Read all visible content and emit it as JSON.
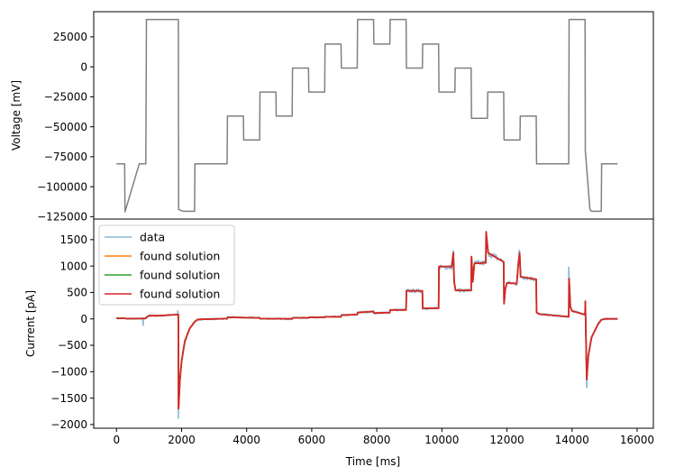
{
  "chart_data": [
    {
      "type": "line",
      "ylabel": "Voltage [mV]",
      "xlabel": "",
      "xlim": [
        -700,
        16500
      ],
      "ylim": [
        -127000,
        46000
      ],
      "yticks": [
        25000,
        0,
        -25000,
        -50000,
        -75000,
        -100000,
        -125000
      ],
      "ytick_labels": [
        "25000",
        "0",
        "−25000",
        "−50000",
        "−75000",
        "−100000",
        "−125000"
      ],
      "series": [
        {
          "color": "#808080",
          "points": [
            [
              0,
              -81000
            ],
            [
              250,
              -81000
            ],
            [
              260,
              -121000
            ],
            [
              700,
              -81000
            ],
            [
              900,
              -81000
            ],
            [
              920,
              39500
            ],
            [
              1900,
              39500
            ],
            [
              1910,
              -119000
            ],
            [
              2050,
              -120500
            ],
            [
              2400,
              -120500
            ],
            [
              2410,
              -81000
            ],
            [
              3400,
              -81000
            ],
            [
              3410,
              -41000
            ],
            [
              3900,
              -41000
            ],
            [
              3910,
              -61000
            ],
            [
              4400,
              -61000
            ],
            [
              4410,
              -21000
            ],
            [
              4900,
              -21000
            ],
            [
              4910,
              -41000
            ],
            [
              5400,
              -41000
            ],
            [
              5410,
              -1000
            ],
            [
              5900,
              -1000
            ],
            [
              5910,
              -21000
            ],
            [
              6400,
              -21000
            ],
            [
              6410,
              19000
            ],
            [
              6900,
              19000
            ],
            [
              6910,
              -1000
            ],
            [
              7400,
              -1000
            ],
            [
              7410,
              39500
            ],
            [
              7900,
              39500
            ],
            [
              7910,
              19000
            ],
            [
              8400,
              19000
            ],
            [
              8410,
              39500
            ],
            [
              8900,
              39500
            ],
            [
              8910,
              -1000
            ],
            [
              9400,
              -1000
            ],
            [
              9410,
              19000
            ],
            [
              9900,
              19000
            ],
            [
              9910,
              -21000
            ],
            [
              10400,
              -21000
            ],
            [
              10410,
              -1000
            ],
            [
              10900,
              -1000
            ],
            [
              10910,
              -43000
            ],
            [
              11400,
              -43000
            ],
            [
              11410,
              -21000
            ],
            [
              11900,
              -21000
            ],
            [
              11910,
              -61000
            ],
            [
              12400,
              -61000
            ],
            [
              12410,
              -41000
            ],
            [
              12900,
              -41000
            ],
            [
              12910,
              -81000
            ],
            [
              13900,
              -81000
            ],
            [
              13910,
              39500
            ],
            [
              14400,
              39500
            ],
            [
              14410,
              -70000
            ],
            [
              14550,
              -119000
            ],
            [
              14600,
              -120500
            ],
            [
              14900,
              -120500
            ],
            [
              14910,
              -81000
            ],
            [
              15400,
              -81000
            ]
          ]
        }
      ]
    },
    {
      "type": "line",
      "ylabel": "Current [pA]",
      "xlabel": "Time [ms]",
      "xlim": [
        -700,
        16500
      ],
      "ylim": [
        -2070,
        1890
      ],
      "xticks": [
        0,
        2000,
        4000,
        6000,
        8000,
        10000,
        12000,
        14000,
        16000
      ],
      "xtick_labels": [
        "0",
        "2000",
        "4000",
        "6000",
        "8000",
        "10000",
        "12000",
        "14000",
        "16000"
      ],
      "yticks": [
        1500,
        1000,
        500,
        0,
        -500,
        -1000,
        -1500,
        -2000
      ],
      "ytick_labels": [
        "1500",
        "1000",
        "500",
        "0",
        "−500",
        "−1000",
        "−1500",
        "−2000"
      ],
      "legend": "upper-left",
      "series": [
        {
          "name": "data",
          "color": "#8ab9d6",
          "width": 1.6,
          "role": "data"
        },
        {
          "name": "found solution",
          "color": "#ff7f0e",
          "width": 1.6,
          "role": "fit"
        },
        {
          "name": "found solution",
          "color": "#2ca02c",
          "width": 1.6,
          "role": "fit"
        },
        {
          "name": "found solution",
          "color": "#d62728",
          "width": 1.8,
          "role": "fit"
        }
      ],
      "fit_points": [
        [
          0,
          10
        ],
        [
          250,
          10
        ],
        [
          300,
          5
        ],
        [
          700,
          5
        ],
        [
          900,
          10
        ],
        [
          920,
          30
        ],
        [
          1000,
          60
        ],
        [
          1300,
          60
        ],
        [
          1850,
          80
        ],
        [
          1900,
          80
        ],
        [
          1905,
          -1700
        ],
        [
          1950,
          -1150
        ],
        [
          2000,
          -800
        ],
        [
          2100,
          -420
        ],
        [
          2250,
          -180
        ],
        [
          2400,
          -60
        ],
        [
          2500,
          -10
        ],
        [
          3400,
          5
        ],
        [
          3410,
          30
        ],
        [
          4400,
          20
        ],
        [
          4410,
          5
        ],
        [
          5400,
          0
        ],
        [
          5410,
          20
        ],
        [
          5900,
          20
        ],
        [
          5910,
          30
        ],
        [
          6400,
          30
        ],
        [
          6410,
          40
        ],
        [
          6900,
          40
        ],
        [
          6910,
          70
        ],
        [
          7400,
          80
        ],
        [
          7410,
          120
        ],
        [
          7900,
          140
        ],
        [
          7910,
          110
        ],
        [
          8400,
          120
        ],
        [
          8410,
          170
        ],
        [
          8900,
          170
        ],
        [
          8910,
          530
        ],
        [
          9400,
          530
        ],
        [
          9410,
          200
        ],
        [
          9900,
          200
        ],
        [
          9910,
          990
        ],
        [
          10300,
          990
        ],
        [
          10350,
          1250
        ],
        [
          10380,
          700
        ],
        [
          10420,
          540
        ],
        [
          10900,
          540
        ],
        [
          10910,
          1180
        ],
        [
          10950,
          700
        ],
        [
          11000,
          1050
        ],
        [
          11350,
          1060
        ],
        [
          11360,
          1650
        ],
        [
          11420,
          1250
        ],
        [
          11900,
          1080
        ],
        [
          11910,
          290
        ],
        [
          11950,
          560
        ],
        [
          12000,
          680
        ],
        [
          12300,
          670
        ],
        [
          12350,
          1050
        ],
        [
          12390,
          1250
        ],
        [
          12420,
          800
        ],
        [
          12900,
          750
        ],
        [
          12910,
          120
        ],
        [
          13000,
          90
        ],
        [
          13900,
          40
        ],
        [
          13910,
          760
        ],
        [
          13950,
          230
        ],
        [
          14000,
          150
        ],
        [
          14400,
          80
        ],
        [
          14410,
          330
        ],
        [
          14450,
          -1150
        ],
        [
          14500,
          -700
        ],
        [
          14600,
          -350
        ],
        [
          14800,
          -100
        ],
        [
          14900,
          -20
        ],
        [
          15000,
          0
        ],
        [
          15400,
          0
        ]
      ]
    }
  ]
}
